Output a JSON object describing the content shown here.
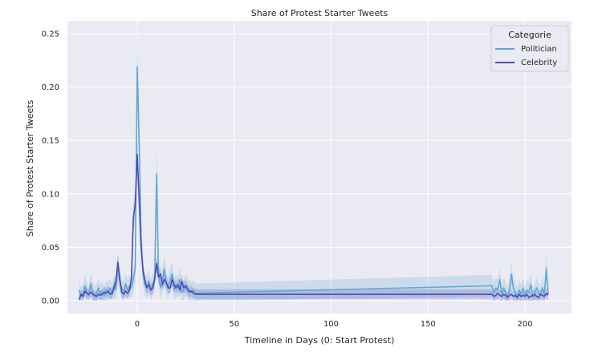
{
  "chart_data": {
    "type": "line",
    "title": "Share of Protest Starter Tweets",
    "xlabel": "Timeline in Days (0: Start Protest)",
    "ylabel": "Share of Protest Starter Tweets",
    "xlim": [
      -36,
      224
    ],
    "ylim": [
      -0.012,
      0.262
    ],
    "xticks": [
      0,
      50,
      100,
      150,
      200
    ],
    "yticks": [
      0.0,
      0.05,
      0.1,
      0.15,
      0.2,
      0.25
    ],
    "ytick_labels": [
      "0.00",
      "0.05",
      "0.10",
      "0.15",
      "0.20",
      "0.25"
    ],
    "grid": true,
    "background": "#eaeaf2",
    "legend": {
      "title": "Categorie",
      "position": "top-right"
    },
    "series": [
      {
        "name": "Politician",
        "color": "#5fa8d3",
        "x": [
          -30,
          -29,
          -28,
          -27,
          -26,
          -25,
          -24,
          -23,
          -22,
          -21,
          -20,
          -19,
          -18,
          -17,
          -16,
          -15,
          -14,
          -13,
          -12,
          -11,
          -10,
          -9,
          -8,
          -7,
          -6,
          -5,
          -4,
          -3,
          -2,
          -1,
          0,
          1,
          2,
          3,
          4,
          5,
          6,
          7,
          8,
          9,
          10,
          11,
          12,
          13,
          14,
          15,
          16,
          17,
          18,
          19,
          20,
          21,
          22,
          23,
          24,
          25,
          26,
          27,
          28,
          29,
          30,
          183,
          184,
          185,
          186,
          187,
          188,
          189,
          190,
          191,
          192,
          193,
          194,
          195,
          196,
          197,
          198,
          199,
          200,
          201,
          202,
          203,
          204,
          205,
          206,
          207,
          208,
          209,
          210,
          211,
          212
        ],
        "y": [
          0.01,
          0.004,
          0.006,
          0.014,
          0.008,
          0.005,
          0.016,
          0.009,
          0.004,
          0.007,
          0.012,
          0.006,
          0.009,
          0.005,
          0.01,
          0.008,
          0.012,
          0.006,
          0.014,
          0.01,
          0.03,
          0.018,
          0.012,
          0.008,
          0.016,
          0.01,
          0.014,
          0.012,
          0.02,
          0.03,
          0.219,
          0.15,
          0.06,
          0.025,
          0.015,
          0.012,
          0.018,
          0.01,
          0.015,
          0.02,
          0.119,
          0.025,
          0.012,
          0.018,
          0.03,
          0.015,
          0.012,
          0.02,
          0.025,
          0.01,
          0.015,
          0.012,
          0.02,
          0.008,
          0.01,
          0.015,
          0.012,
          0.01,
          0.008,
          0.01,
          0.007,
          0.014,
          0.007,
          0.012,
          0.01,
          0.02,
          0.006,
          0.012,
          0.008,
          0.004,
          0.01,
          0.025,
          0.012,
          0.008,
          0.004,
          0.01,
          0.006,
          0.012,
          0.005,
          0.01,
          0.008,
          0.015,
          0.003,
          0.006,
          0.012,
          0.008,
          0.005,
          0.012,
          0.006,
          0.03,
          0.006
        ]
      },
      {
        "name": "Celebrity",
        "color": "#4b4bb8",
        "x": [
          -30,
          -29,
          -28,
          -27,
          -26,
          -25,
          -24,
          -23,
          -22,
          -21,
          -20,
          -19,
          -18,
          -17,
          -16,
          -15,
          -14,
          -13,
          -12,
          -11,
          -10,
          -9,
          -8,
          -7,
          -6,
          -5,
          -4,
          -3,
          -2,
          -1,
          0,
          1,
          2,
          3,
          4,
          5,
          6,
          7,
          8,
          9,
          10,
          11,
          12,
          13,
          14,
          15,
          16,
          17,
          18,
          19,
          20,
          21,
          22,
          23,
          24,
          25,
          26,
          27,
          28,
          29,
          30,
          183,
          184,
          185,
          186,
          187,
          188,
          189,
          190,
          191,
          192,
          193,
          194,
          195,
          196,
          197,
          198,
          199,
          200,
          201,
          202,
          203,
          204,
          205,
          206,
          207,
          208,
          209,
          210,
          211,
          212
        ],
        "y": [
          0.001,
          0.006,
          0.004,
          0.009,
          0.007,
          0.006,
          0.008,
          0.006,
          0.005,
          0.004,
          0.006,
          0.005,
          0.006,
          0.008,
          0.007,
          0.009,
          0.006,
          0.007,
          0.012,
          0.018,
          0.036,
          0.02,
          0.008,
          0.006,
          0.009,
          0.007,
          0.01,
          0.02,
          0.078,
          0.09,
          0.137,
          0.095,
          0.05,
          0.028,
          0.018,
          0.012,
          0.015,
          0.01,
          0.012,
          0.02,
          0.035,
          0.022,
          0.025,
          0.015,
          0.02,
          0.017,
          0.012,
          0.012,
          0.02,
          0.015,
          0.012,
          0.015,
          0.01,
          0.018,
          0.012,
          0.014,
          0.01,
          0.008,
          0.009,
          0.007,
          0.006,
          0.006,
          0.004,
          0.005,
          0.007,
          0.005,
          0.004,
          0.006,
          0.005,
          0.003,
          0.005,
          0.006,
          0.004,
          0.005,
          0.003,
          0.006,
          0.004,
          0.005,
          0.004,
          0.006,
          0.003,
          0.004,
          0.005,
          0.006,
          0.004,
          0.003,
          0.006,
          0.005,
          0.004,
          0.007,
          0.005
        ]
      }
    ]
  }
}
